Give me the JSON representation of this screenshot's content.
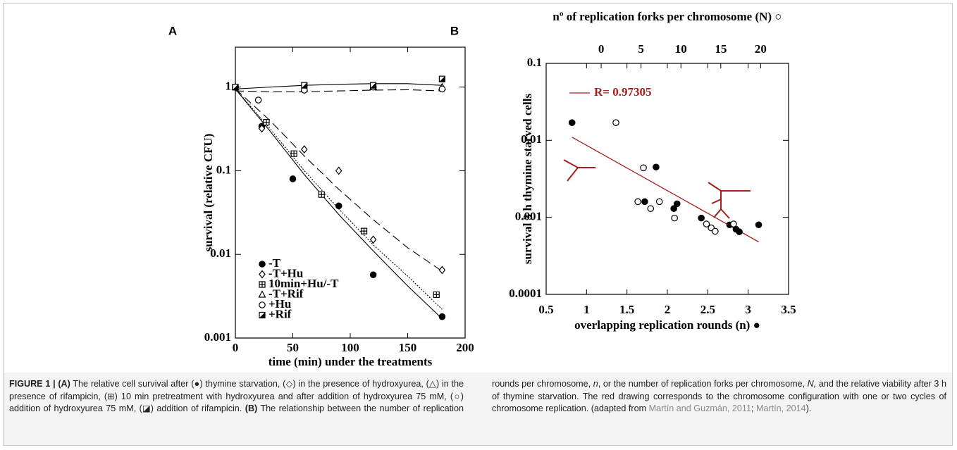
{
  "chart_data": [
    {
      "type": "scatter",
      "panel": "A",
      "log": true,
      "xlabel": "time (min) under the treatments",
      "ylabel": "survival (relative CFU)",
      "xlim": [
        0,
        200
      ],
      "xticks": [
        0,
        50,
        100,
        150,
        200
      ],
      "ylim": [
        0.001,
        3
      ],
      "yticks": [
        0.001,
        0.01,
        0.1,
        1
      ],
      "legend": "lower left",
      "series": [
        {
          "name": "-T",
          "marker": "filled-circle",
          "color": "#000000",
          "x": [
            0,
            23,
            50,
            90,
            120,
            180
          ],
          "values": [
            1,
            0.34,
            0.08,
            0.038,
            0.0057,
            0.0018
          ]
        },
        {
          "name": "-T+Hu",
          "marker": "diamond",
          "color": "#000000",
          "x": [
            0,
            23,
            60,
            90,
            120,
            180
          ],
          "values": [
            1,
            0.32,
            0.18,
            0.1,
            0.015,
            0.0065
          ]
        },
        {
          "name": "10min+Hu/-T",
          "marker": "square-plus",
          "color": "#000000",
          "x": [
            0,
            27,
            51,
            75,
            112,
            175
          ],
          "values": [
            1,
            0.38,
            0.16,
            0.052,
            0.019,
            0.0033
          ]
        },
        {
          "name": "-T+Rif",
          "marker": "triangle",
          "color": "#000000",
          "x": [
            0,
            60,
            120,
            180
          ],
          "values": [
            1,
            0.95,
            1.0,
            1.0
          ]
        },
        {
          "name": "+Hu",
          "marker": "circle",
          "color": "#000000",
          "x": [
            0,
            20,
            60,
            120,
            180
          ],
          "values": [
            1,
            0.7,
            0.92,
            1.0,
            0.95
          ]
        },
        {
          "name": "+Rif",
          "marker": "half-square",
          "color": "#000000",
          "x": [
            0,
            60,
            120,
            180
          ],
          "values": [
            1,
            1.05,
            1.05,
            1.25
          ]
        }
      ],
      "curves": [
        {
          "style": "solid",
          "color": "#000000",
          "x": [
            0,
            30,
            60,
            90,
            120,
            150,
            180
          ],
          "values": [
            0.95,
            0.3,
            0.09,
            0.03,
            0.011,
            0.0042,
            0.0017
          ]
        },
        {
          "style": "dotted",
          "color": "#000000",
          "x": [
            0,
            30,
            60,
            90,
            120,
            150,
            180
          ],
          "values": [
            0.95,
            0.32,
            0.1,
            0.035,
            0.013,
            0.0055,
            0.0022
          ]
        },
        {
          "style": "dashed",
          "color": "#000000",
          "x": [
            0,
            30,
            60,
            90,
            120,
            150,
            180
          ],
          "values": [
            0.95,
            0.4,
            0.15,
            0.06,
            0.026,
            0.012,
            0.0063
          ]
        },
        {
          "style": "solid",
          "color": "#000000",
          "x": [
            0,
            30,
            60,
            90,
            120,
            150,
            180
          ],
          "values": [
            0.95,
            1.0,
            1.05,
            1.08,
            1.1,
            1.1,
            1.05
          ]
        },
        {
          "style": "dashed",
          "color": "#000000",
          "x": [
            0,
            30,
            60,
            90,
            120,
            150,
            180
          ],
          "values": [
            0.9,
            0.88,
            0.88,
            0.9,
            0.92,
            0.93,
            0.9
          ]
        }
      ]
    },
    {
      "type": "scatter",
      "panel": "B",
      "log": true,
      "xlabel": "overlapping replication rounds (n) ●",
      "x2label": "nº of replication forks per chromosome (N) ○",
      "ylabel": "survival 3 h thymine starved cells",
      "xlim": [
        0.5,
        3.5
      ],
      "xticks": [
        0.5,
        1,
        1.5,
        2,
        2.5,
        3,
        3.5
      ],
      "x2lim": [
        -6.9,
        23.5
      ],
      "x2ticks": [
        0,
        5,
        10,
        15,
        20
      ],
      "ylim": [
        0.0001,
        0.1
      ],
      "yticks": [
        0.0001,
        0.001,
        0.01,
        0.1
      ],
      "series": [
        {
          "marker": "filled-circle",
          "color": "#000000",
          "x": [
            0.82,
            1.72,
            1.86,
            2.08,
            2.12,
            2.42,
            2.77,
            2.85,
            2.89,
            3.13
          ],
          "values": [
            0.017,
            0.0016,
            0.0045,
            0.0013,
            0.0015,
            0.00098,
            0.0008,
            0.0007,
            0.00065,
            0.0008
          ]
        },
        {
          "marker": "circle",
          "color": "#000000",
          "axis": "x2",
          "x": [
            1.85,
            5.3,
            4.6,
            6.2,
            7.3,
            9.2,
            13.2,
            13.8,
            14.3,
            16.6
          ],
          "values": [
            0.017,
            0.0044,
            0.0016,
            0.0013,
            0.0016,
            0.00098,
            0.00082,
            0.00073,
            0.00066,
            0.00082
          ]
        }
      ],
      "fit": {
        "name": "R= 0.97305",
        "color": "#a3201c",
        "x": [
          0.82,
          3.13
        ],
        "values": [
          0.011,
          0.00048
        ]
      }
    }
  ],
  "caption": {
    "parts": [
      "FIGURE 1 | (A)",
      " The relative cell survival after (●) thymine starvation, (◇) in the presence of hydroxyurea, (△) in the presence of rifampicin, (⊞) 10 min pretreatment with hydroxyurea and after addition of hydroxyurea 75 mM, (○) addition of hydroxyurea 75 mM, (◪) addition of rifampicin. ",
      "(B)",
      " The relationship between the number of replication rounds per chromosome, ",
      "n",
      ", or the number of replication forks per chromosome, ",
      "N,",
      " and the relative viability after 3 h of thymine starvation. The red drawing corresponds to the chromosome configuration with one or two cycles of chromosome replication. (adapted from ",
      "Martín and Guzmán, 2011",
      "; ",
      "Martín, 2014",
      ")."
    ]
  }
}
